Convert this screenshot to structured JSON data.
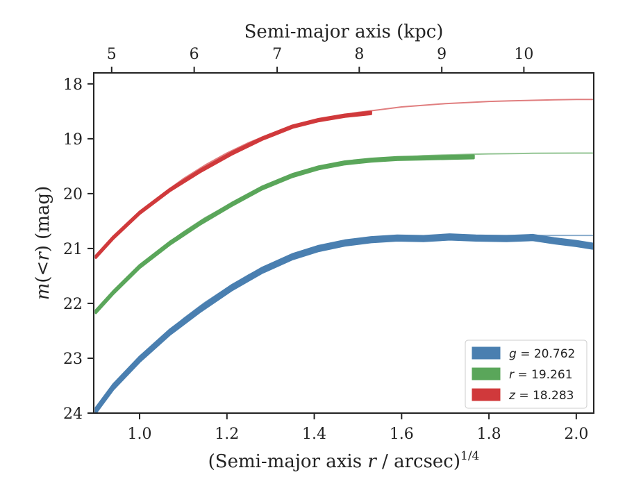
{
  "chart_data": {
    "type": "line",
    "xlabel_main": "(Semi-major axis ",
    "xlabel_var": "r",
    "xlabel_rest": " / arcsec)",
    "xlabel_exp": "1/4",
    "ylabel_m": "m",
    "ylabel_mid": "(<",
    "ylabel_r": "r",
    "ylabel_close": ")",
    "ylabel_unit": " (mag)",
    "top_xlabel": "Semi-major axis (kpc)",
    "xlim": [
      0.895,
      2.04
    ],
    "ylim": [
      24.0,
      17.8
    ],
    "y_inverted": true,
    "x_ticks": [
      1.0,
      1.2,
      1.4,
      1.6,
      1.8,
      2.0
    ],
    "x_tick_labels": [
      "1.0",
      "1.2",
      "1.4",
      "1.6",
      "1.8",
      "2.0"
    ],
    "y_ticks": [
      18,
      19,
      20,
      21,
      22,
      23,
      24
    ],
    "y_tick_labels": [
      "18",
      "19",
      "20",
      "21",
      "22",
      "23",
      "24"
    ],
    "top_ticks_kpc": [
      5,
      6,
      7,
      8,
      9,
      10
    ],
    "top_tick_labels": [
      "5",
      "6",
      "7",
      "8",
      "9",
      "10"
    ],
    "top_ticks_x_position": [
      0.936,
      1.125,
      1.315,
      1.503,
      1.692,
      1.88
    ],
    "grid": false,
    "legend_position": "lower-right",
    "series": [
      {
        "name": "g = 20.762",
        "band": "g",
        "total": "20.762",
        "color": "#4a7fb0",
        "band_width": 0.09,
        "data_x": [
          0.9,
          0.94,
          1.0,
          1.07,
          1.14,
          1.21,
          1.28,
          1.35,
          1.41,
          1.47,
          1.53,
          1.59,
          1.65,
          1.71,
          1.77,
          1.84,
          1.9,
          1.95,
          2.0,
          2.04
        ],
        "data_y": [
          23.95,
          23.52,
          23.02,
          22.52,
          22.1,
          21.72,
          21.4,
          21.15,
          21.0,
          20.9,
          20.84,
          20.81,
          20.82,
          20.79,
          20.81,
          20.82,
          20.8,
          20.86,
          20.91,
          20.96
        ],
        "model_x": [
          0.9,
          0.95,
          1.0,
          1.05,
          1.1,
          1.15,
          1.2,
          1.25,
          1.3,
          1.35,
          1.4,
          1.45,
          1.5,
          1.55,
          1.6,
          1.65,
          1.7,
          1.75,
          1.8,
          1.85,
          1.9,
          1.95,
          2.0,
          2.04
        ],
        "model_y": [
          23.95,
          23.45,
          22.99,
          22.62,
          22.28,
          21.98,
          21.72,
          21.48,
          21.29,
          21.13,
          21.0,
          20.92,
          20.86,
          20.82,
          20.8,
          20.78,
          20.77,
          20.77,
          20.765,
          20.763,
          20.762,
          20.762,
          20.762,
          20.762
        ]
      },
      {
        "name": "r = 19.261",
        "band": "r",
        "total": "19.261",
        "color": "#5aa65a",
        "band_width": 0.05,
        "data_x": [
          0.9,
          0.94,
          1.0,
          1.07,
          1.14,
          1.21,
          1.28,
          1.35,
          1.41,
          1.47,
          1.53,
          1.59,
          1.65,
          1.71,
          1.765
        ],
        "data_y": [
          22.15,
          21.8,
          21.33,
          20.9,
          20.53,
          20.2,
          19.9,
          19.67,
          19.53,
          19.44,
          19.39,
          19.36,
          19.35,
          19.34,
          19.33
        ],
        "model_x": [
          0.9,
          0.95,
          1.0,
          1.05,
          1.1,
          1.15,
          1.2,
          1.25,
          1.3,
          1.35,
          1.4,
          1.45,
          1.5,
          1.55,
          1.6,
          1.65,
          1.7,
          1.75,
          1.8,
          1.85,
          1.9,
          1.95,
          2.0,
          2.04
        ],
        "model_y": [
          22.15,
          21.72,
          21.33,
          20.99,
          20.7,
          20.44,
          20.22,
          20.02,
          19.84,
          19.7,
          19.58,
          19.49,
          19.42,
          19.37,
          19.34,
          19.31,
          19.295,
          19.285,
          19.275,
          19.27,
          19.265,
          19.263,
          19.262,
          19.261
        ]
      },
      {
        "name": "z = 18.283",
        "band": "z",
        "total": "18.283",
        "color": "#d0393b",
        "band_width": 0.04,
        "data_x": [
          0.9,
          0.94,
          1.0,
          1.07,
          1.14,
          1.21,
          1.28,
          1.35,
          1.41,
          1.47,
          1.53
        ],
        "data_y": [
          21.15,
          20.8,
          20.35,
          19.93,
          19.58,
          19.27,
          19.0,
          18.78,
          18.66,
          18.58,
          18.53
        ],
        "model_x": [
          0.9,
          0.95,
          1.0,
          1.05,
          1.1,
          1.15,
          1.2,
          1.25,
          1.3,
          1.35,
          1.4,
          1.45,
          1.5,
          1.55,
          1.6,
          1.65,
          1.7,
          1.75,
          1.8,
          1.85,
          1.9,
          1.95,
          2.0,
          2.04
        ],
        "model_y": [
          21.15,
          20.74,
          20.35,
          20.02,
          19.73,
          19.48,
          19.26,
          19.07,
          18.91,
          18.78,
          18.67,
          18.59,
          18.52,
          18.47,
          18.42,
          18.39,
          18.36,
          18.34,
          18.32,
          18.31,
          18.3,
          18.29,
          18.285,
          18.283
        ]
      }
    ]
  }
}
